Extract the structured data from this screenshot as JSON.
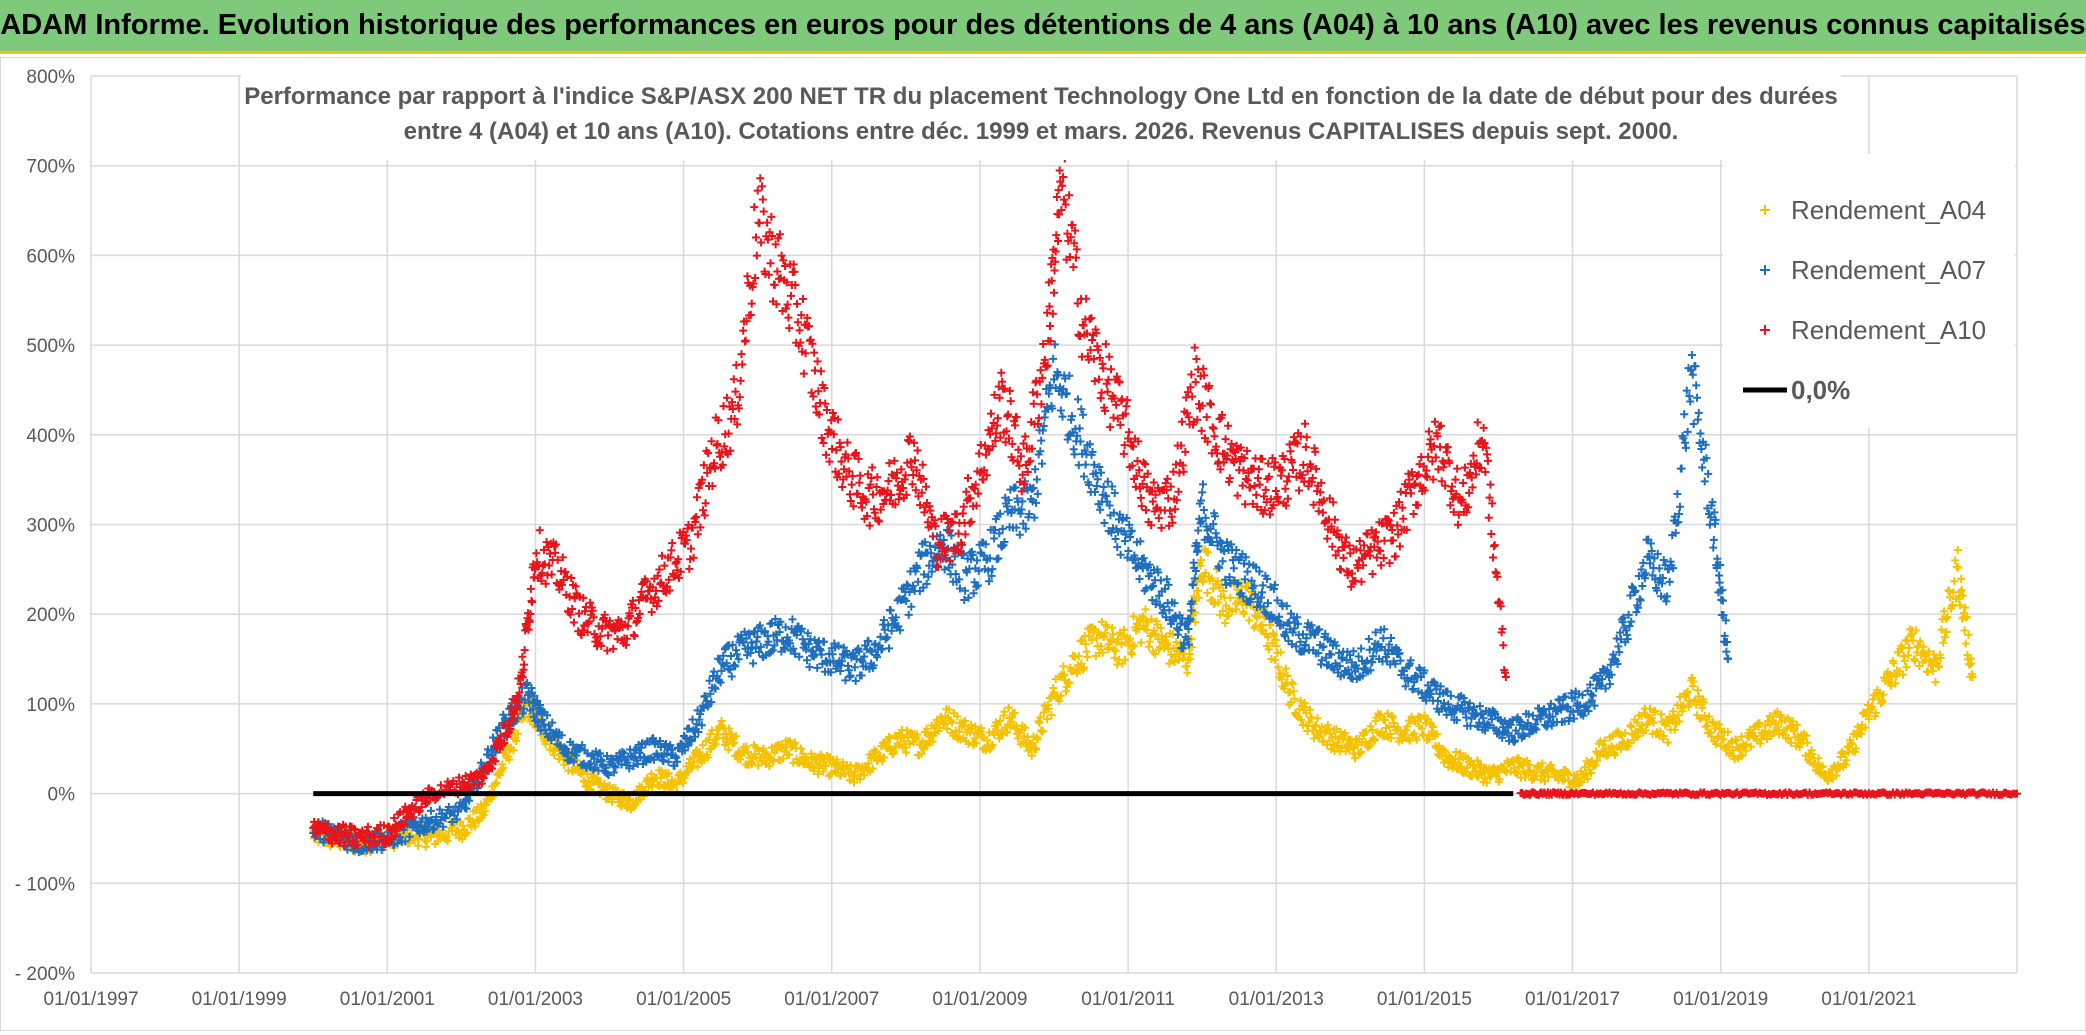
{
  "banner": {
    "title": "ADAM Informe. Evolution historique des performances en euros pour des détentions de 4 ans (A04) à 10 ans (A10) avec les revenus connus capitalisés"
  },
  "colors": {
    "banner_bg": "#7fc97a",
    "banner_border": "#f0c020",
    "series_A04": "#f5c200",
    "series_A07": "#1f6fbf",
    "series_A10": "#e8141c",
    "zero_line": "#000000",
    "grid": "#d9d9d9"
  },
  "chart_data": {
    "type": "scatter",
    "title_line1": "Performance par rapport à l'indice S&P/ASX 200 NET TR  du placement Technology One Ltd en fonction de la date de début pour des durées",
    "title_line2": "entre 4 (A04) et 10 ans (A10). Cotations entre déc. 1999 et mars. 2026. Revenus CAPITALISES depuis sept. 2000.",
    "xlabel": "",
    "ylabel": "",
    "ylim": [
      -200,
      800
    ],
    "xlim": [
      1997.0,
      2023.0
    ],
    "y_ticks": [
      -200,
      -100,
      0,
      100,
      200,
      300,
      400,
      500,
      600,
      700,
      800
    ],
    "y_tick_labels": [
      "- 200%",
      "- 100%",
      "0%",
      "100%",
      "200%",
      "300%",
      "400%",
      "500%",
      "600%",
      "700%",
      "800%"
    ],
    "x_ticks": [
      1997,
      1999,
      2001,
      2003,
      2005,
      2007,
      2009,
      2011,
      2013,
      2015,
      2017,
      2019,
      2021
    ],
    "x_tick_labels": [
      "01/01/1997",
      "01/01/1999",
      "01/01/2001",
      "01/01/2003",
      "01/01/2005",
      "01/01/2007",
      "01/01/2009",
      "01/01/2011",
      "01/01/2013",
      "01/01/2015",
      "01/01/2017",
      "01/01/2019",
      "01/01/2021"
    ],
    "legend": [
      "Rendement_A04",
      "Rendement_A07",
      "Rendement_A10",
      "0,0%"
    ],
    "legend_position": "top-right",
    "zero_line": {
      "name": "0,0%",
      "x": [
        2000.0,
        2016.2
      ],
      "y": [
        0,
        0
      ]
    },
    "series": [
      {
        "name": "Rendement_A04",
        "marker": "+",
        "x": [
          2000.0,
          2000.3,
          2000.6,
          2001.0,
          2001.3,
          2001.6,
          2002.0,
          2002.3,
          2002.6,
          2002.9,
          2003.1,
          2003.4,
          2003.7,
          2004.0,
          2004.3,
          2004.6,
          2004.9,
          2005.2,
          2005.5,
          2005.8,
          2006.1,
          2006.4,
          2006.7,
          2007.0,
          2007.3,
          2007.6,
          2007.9,
          2008.2,
          2008.5,
          2008.8,
          2009.1,
          2009.4,
          2009.7,
          2010.0,
          2010.3,
          2010.6,
          2010.9,
          2011.2,
          2011.5,
          2011.8,
          2012.0,
          2012.3,
          2012.6,
          2012.9,
          2013.2,
          2013.5,
          2013.8,
          2014.1,
          2014.4,
          2014.7,
          2015.0,
          2015.3,
          2015.6,
          2015.9,
          2016.2,
          2016.5,
          2016.8,
          2017.1,
          2017.4,
          2017.7,
          2018.0,
          2018.3,
          2018.6,
          2018.9,
          2019.2,
          2019.5,
          2019.8,
          2020.1,
          2020.4,
          2020.7,
          2021.0,
          2021.3,
          2021.6,
          2021.9,
          2022.2,
          2022.4
        ],
        "y": [
          -45,
          -50,
          -55,
          -50,
          -45,
          -48,
          -40,
          -20,
          40,
          100,
          70,
          40,
          15,
          0,
          -10,
          20,
          10,
          40,
          70,
          45,
          40,
          50,
          35,
          30,
          20,
          40,
          60,
          55,
          85,
          70,
          60,
          85,
          50,
          110,
          150,
          175,
          160,
          190,
          165,
          150,
          260,
          210,
          220,
          175,
          110,
          75,
          60,
          50,
          80,
          70,
          75,
          40,
          30,
          20,
          30,
          25,
          20,
          15,
          50,
          60,
          85,
          70,
          115,
          70,
          50,
          65,
          80,
          60,
          20,
          40,
          90,
          130,
          170,
          140,
          250,
          130
        ]
      },
      {
        "name": "Rendement_A07",
        "marker": "+",
        "x": [
          2000.0,
          2000.3,
          2000.6,
          2001.0,
          2001.3,
          2001.6,
          2002.0,
          2002.3,
          2002.6,
          2002.9,
          2003.1,
          2003.4,
          2003.7,
          2004.0,
          2004.3,
          2004.6,
          2004.9,
          2005.2,
          2005.5,
          2005.8,
          2006.1,
          2006.4,
          2006.7,
          2007.0,
          2007.3,
          2007.6,
          2007.9,
          2008.2,
          2008.5,
          2008.8,
          2009.1,
          2009.4,
          2009.7,
          2010.0,
          2010.3,
          2010.6,
          2010.9,
          2011.2,
          2011.5,
          2011.8,
          2012.0,
          2012.3,
          2012.6,
          2012.9,
          2013.2,
          2013.5,
          2013.8,
          2014.1,
          2014.4,
          2014.7,
          2015.0,
          2015.3,
          2015.6,
          2015.9,
          2016.2,
          2016.5,
          2016.8,
          2017.1,
          2017.4,
          2017.7,
          2018.0,
          2018.3,
          2018.6,
          2018.9,
          2019.1
        ],
        "y": [
          -40,
          -45,
          -55,
          -50,
          -40,
          -30,
          -20,
          30,
          80,
          110,
          80,
          50,
          40,
          30,
          40,
          50,
          40,
          80,
          140,
          160,
          170,
          180,
          160,
          150,
          140,
          160,
          200,
          250,
          280,
          240,
          260,
          310,
          320,
          470,
          410,
          350,
          290,
          250,
          220,
          170,
          320,
          260,
          240,
          220,
          180,
          170,
          150,
          140,
          170,
          140,
          120,
          100,
          90,
          80,
          70,
          80,
          90,
          100,
          120,
          180,
          260,
          230,
          470,
          300,
          150
        ]
      },
      {
        "name": "Rendement_A10",
        "marker": "+",
        "x": [
          2000.0,
          2000.3,
          2000.6,
          2001.0,
          2001.3,
          2001.6,
          2002.0,
          2002.3,
          2002.6,
          2002.8,
          2003.0,
          2003.3,
          2003.6,
          2003.9,
          2004.2,
          2004.5,
          2004.8,
          2005.1,
          2005.4,
          2005.7,
          2006.0,
          2006.3,
          2006.6,
          2006.9,
          2007.2,
          2007.5,
          2007.8,
          2008.1,
          2008.4,
          2008.7,
          2009.0,
          2009.3,
          2009.6,
          2009.9,
          2010.1,
          2010.4,
          2010.7,
          2011.0,
          2011.3,
          2011.6,
          2011.9,
          2012.2,
          2012.5,
          2012.8,
          2013.1,
          2013.4,
          2013.7,
          2014.0,
          2014.3,
          2014.6,
          2014.9,
          2015.2,
          2015.5,
          2015.8,
          2016.1
        ],
        "y": [
          -40,
          -45,
          -50,
          -45,
          -20,
          0,
          10,
          20,
          70,
          120,
          270,
          250,
          200,
          180,
          180,
          220,
          250,
          280,
          380,
          430,
          640,
          580,
          520,
          420,
          360,
          330,
          340,
          380,
          280,
          290,
          360,
          440,
          360,
          500,
          680,
          520,
          460,
          400,
          320,
          330,
          460,
          400,
          360,
          340,
          350,
          380,
          310,
          250,
          270,
          290,
          350,
          390,
          320,
          400,
          130
        ]
      },
      {
        "name": "Rendement_A10_zero_segment",
        "legend": false,
        "marker": "+",
        "x": [
          2016.3,
          2017.0,
          2018.0,
          2019.0,
          2020.0,
          2021.0,
          2022.0,
          2023.0
        ],
        "y": [
          0,
          0,
          0,
          0,
          0,
          0,
          0,
          0
        ]
      }
    ]
  }
}
